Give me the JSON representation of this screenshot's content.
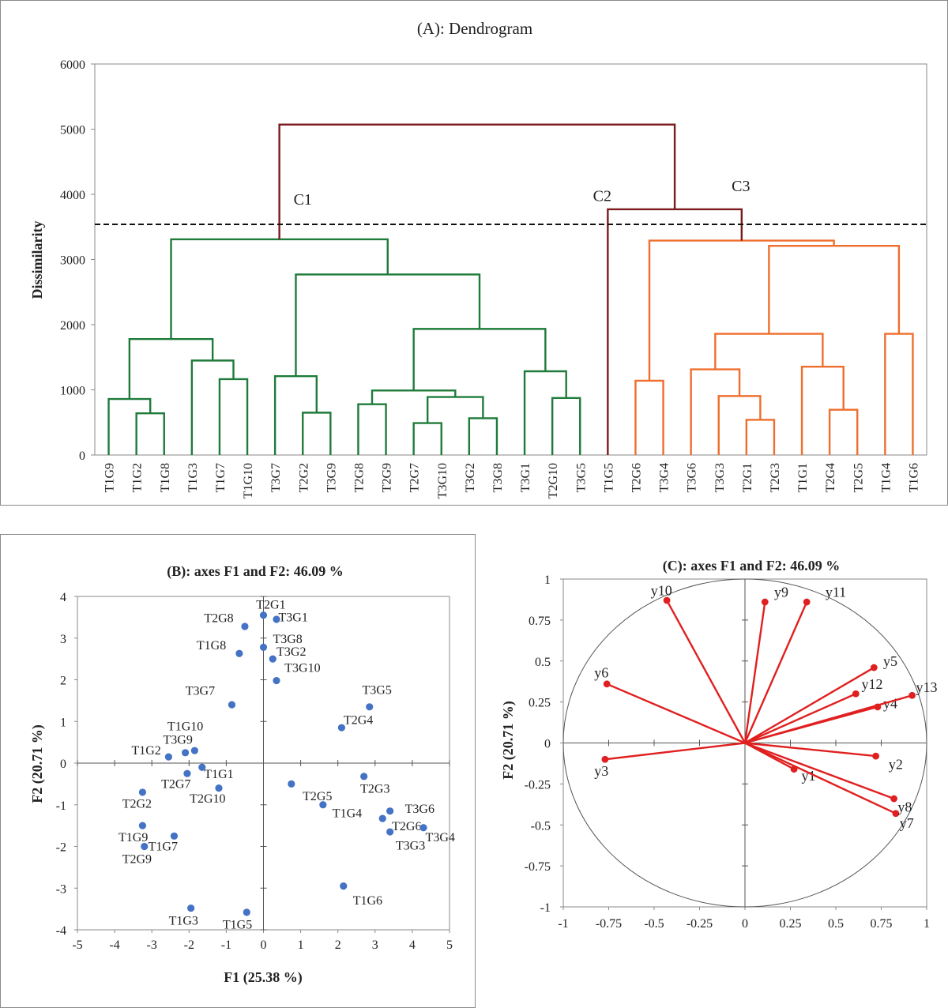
{
  "chart_data": [
    {
      "type": "dendrogram",
      "title": "(A): Dendrogram",
      "ylabel": "Dissimilarity",
      "ylim": [
        0,
        6000
      ],
      "yticks": [
        "0",
        "1000",
        "2000",
        "3000",
        "4000",
        "5000",
        "6000"
      ],
      "threshold": 3540,
      "leaves": [
        "T1G9",
        "T1G2",
        "T1G8",
        "T1G3",
        "T1G7",
        "T1G10",
        "T3G7",
        "T2G2",
        "T3G9",
        "T2G8",
        "T2G9",
        "T2G7",
        "T3G10",
        "T3G2",
        "T3G8",
        "T3G1",
        "T2G10",
        "T3G5",
        "T1G5",
        "T2G6",
        "T3G4",
        "T3G6",
        "T3G3",
        "T2G1",
        "T2G3",
        "T1G1",
        "T2G4",
        "T2G5",
        "T1G4",
        "T1G6"
      ],
      "cluster_labels": [
        {
          "text": "C1",
          "x": 7.5,
          "y": 3840
        },
        {
          "text": "C2",
          "x": 18.3,
          "y": 3900
        },
        {
          "text": "C3",
          "x": 23.3,
          "y": 4050
        }
      ],
      "colors": {
        "C1": "#1e7b3a",
        "C2": "#7b1a1e",
        "C3": "#ef6e2d",
        "root": "#7b1a1e"
      },
      "merges": [
        {
          "id": "m1",
          "l": "T1G2",
          "r": "T1G8",
          "h": 640,
          "c": "C1"
        },
        {
          "id": "m2",
          "l": "T1G9",
          "r": "m1",
          "h": 860,
          "c": "C1"
        },
        {
          "id": "m3",
          "l": "T1G7",
          "r": "T1G10",
          "h": 1165,
          "c": "C1"
        },
        {
          "id": "m4",
          "l": "T1G3",
          "r": "m3",
          "h": 1450,
          "c": "C1"
        },
        {
          "id": "m5",
          "l": "m2",
          "r": "m4",
          "h": 1780,
          "c": "C1"
        },
        {
          "id": "m6",
          "l": "T2G2",
          "r": "T3G9",
          "h": 650,
          "c": "C1"
        },
        {
          "id": "m7",
          "l": "T3G7",
          "r": "m6",
          "h": 1210,
          "c": "C1"
        },
        {
          "id": "m8",
          "l": "T2G8",
          "r": "T2G9",
          "h": 780,
          "c": "C1"
        },
        {
          "id": "m9",
          "l": "T2G7",
          "r": "T3G10",
          "h": 490,
          "c": "C1"
        },
        {
          "id": "m10",
          "l": "T3G2",
          "r": "T3G8",
          "h": 565,
          "c": "C1"
        },
        {
          "id": "m11",
          "l": "m9",
          "r": "m10",
          "h": 890,
          "c": "C1"
        },
        {
          "id": "m12",
          "l": "m8",
          "r": "m11",
          "h": 990,
          "c": "C1"
        },
        {
          "id": "m13",
          "l": "T2G10",
          "r": "T3G5",
          "h": 875,
          "c": "C1"
        },
        {
          "id": "m14",
          "l": "T3G1",
          "r": "m13",
          "h": 1285,
          "c": "C1"
        },
        {
          "id": "m15",
          "l": "m12",
          "r": "m14",
          "h": 1935,
          "c": "C1"
        },
        {
          "id": "m16",
          "l": "m7",
          "r": "m15",
          "h": 2770,
          "c": "C1"
        },
        {
          "id": "m17",
          "l": "m5",
          "r": "m16",
          "h": 3310,
          "c": "C1"
        },
        {
          "id": "m18",
          "l": "T2G6",
          "r": "T3G4",
          "h": 1140,
          "c": "C3"
        },
        {
          "id": "m19",
          "l": "T2G1",
          "r": "T2G3",
          "h": 540,
          "c": "C3"
        },
        {
          "id": "m20",
          "l": "T3G3",
          "r": "m19",
          "h": 905,
          "c": "C3"
        },
        {
          "id": "m21",
          "l": "T3G6",
          "r": "m20",
          "h": 1315,
          "c": "C3"
        },
        {
          "id": "m22",
          "l": "T2G4",
          "r": "T2G5",
          "h": 695,
          "c": "C3"
        },
        {
          "id": "m23",
          "l": "T1G1",
          "r": "m22",
          "h": 1355,
          "c": "C3"
        },
        {
          "id": "m24",
          "l": "m21",
          "r": "m23",
          "h": 1860,
          "c": "C3"
        },
        {
          "id": "m25",
          "l": "T1G4",
          "r": "T1G6",
          "h": 1860,
          "c": "C3"
        },
        {
          "id": "m26",
          "l": "m24",
          "r": "m25",
          "h": 3210,
          "c": "C3"
        },
        {
          "id": "m27",
          "l": "m18",
          "r": "m26",
          "h": 3290,
          "c": "C3"
        },
        {
          "id": "m28",
          "l": "T1G5",
          "r": "m27",
          "h": 3770,
          "c": "C2"
        },
        {
          "id": "m29",
          "l": "m17",
          "r": "m28",
          "h": 5070,
          "c": "root"
        }
      ]
    },
    {
      "type": "scatter",
      "title": "(B): axes F1 and F2: 46.09 %",
      "xlabel": "F1 (25.38 %)",
      "ylabel": "F2 (20.71 %)",
      "xlim": [
        -5,
        5
      ],
      "ylim": [
        -4,
        4
      ],
      "xticks": [
        "-5",
        "-4",
        "-3",
        "-2",
        "-1",
        "0",
        "1",
        "2",
        "3",
        "4",
        "5"
      ],
      "yticks": [
        "-4",
        "-3",
        "-2",
        "-1",
        "0",
        "1",
        "2",
        "3",
        "4"
      ],
      "color": "#4472c4",
      "points": [
        {
          "label": "T2G1",
          "x": 0.0,
          "y": 3.55,
          "lx": 0.2,
          "ly": 3.8
        },
        {
          "label": "T3G1",
          "x": 0.35,
          "y": 3.45,
          "lx": 0.8,
          "ly": 3.5
        },
        {
          "label": "T2G8",
          "x": -0.5,
          "y": 3.28,
          "lx": -1.2,
          "ly": 3.48
        },
        {
          "label": "T3G8",
          "x": 0.0,
          "y": 2.78,
          "lx": 0.65,
          "ly": 2.98
        },
        {
          "label": "T1G8",
          "x": -0.65,
          "y": 2.63,
          "lx": -1.4,
          "ly": 2.82
        },
        {
          "label": "T3G2",
          "x": 0.25,
          "y": 2.5,
          "lx": 0.75,
          "ly": 2.67
        },
        {
          "label": "T3G10",
          "x": 0.35,
          "y": 1.98,
          "lx": 1.05,
          "ly": 2.28
        },
        {
          "label": "T3G7",
          "x": -0.85,
          "y": 1.4,
          "lx": -1.7,
          "ly": 1.73
        },
        {
          "label": "T3G5",
          "x": 2.85,
          "y": 1.35,
          "lx": 3.05,
          "ly": 1.75
        },
        {
          "label": "T2G4",
          "x": 2.1,
          "y": 0.85,
          "lx": 2.55,
          "ly": 1.03
        },
        {
          "label": "T1G10",
          "x": -1.85,
          "y": 0.3,
          "lx": -2.1,
          "ly": 0.88
        },
        {
          "label": "T3G9",
          "x": -2.1,
          "y": 0.25,
          "lx": -2.3,
          "ly": 0.56
        },
        {
          "label": "T1G2",
          "x": -2.55,
          "y": 0.15,
          "lx": -3.15,
          "ly": 0.3
        },
        {
          "label": "T1G1",
          "x": -1.65,
          "y": -0.1,
          "lx": -1.2,
          "ly": -0.27
        },
        {
          "label": "T2G7",
          "x": -2.05,
          "y": -0.25,
          "lx": -2.35,
          "ly": -0.5
        },
        {
          "label": "T2G10",
          "x": -1.2,
          "y": -0.6,
          "lx": -1.5,
          "ly": -0.85
        },
        {
          "label": "T2G2",
          "x": -3.25,
          "y": -0.7,
          "lx": -3.4,
          "ly": -0.98
        },
        {
          "label": "T2G3",
          "x": 2.7,
          "y": -0.32,
          "lx": 3.0,
          "ly": -0.62
        },
        {
          "label": "T2G5",
          "x": 0.75,
          "y": -0.5,
          "lx": 1.45,
          "ly": -0.8
        },
        {
          "label": "T1G4",
          "x": 1.6,
          "y": -1.0,
          "lx": 2.25,
          "ly": -1.2
        },
        {
          "label": "T3G6",
          "x": 3.4,
          "y": -1.15,
          "lx": 4.2,
          "ly": -1.1
        },
        {
          "label": "T2G6",
          "x": 3.2,
          "y": -1.33,
          "lx": 3.85,
          "ly": -1.52
        },
        {
          "label": "T3G4",
          "x": 4.3,
          "y": -1.55,
          "lx": 4.75,
          "ly": -1.78
        },
        {
          "label": "T3G3",
          "x": 3.4,
          "y": -1.65,
          "lx": 3.95,
          "ly": -1.98
        },
        {
          "label": "T1G9",
          "x": -3.25,
          "y": -1.5,
          "lx": -3.5,
          "ly": -1.78
        },
        {
          "label": "T1G7",
          "x": -2.4,
          "y": -1.75,
          "lx": -2.7,
          "ly": -2.0
        },
        {
          "label": "T2G9",
          "x": -3.2,
          "y": -2.0,
          "lx": -3.4,
          "ly": -2.3
        },
        {
          "label": "T1G6",
          "x": 2.15,
          "y": -2.95,
          "lx": 2.8,
          "ly": -3.3
        },
        {
          "label": "T1G3",
          "x": -1.95,
          "y": -3.48,
          "lx": -2.15,
          "ly": -3.78
        },
        {
          "label": "T1G5",
          "x": -0.45,
          "y": -3.58,
          "lx": -0.7,
          "ly": -3.88
        }
      ]
    },
    {
      "type": "correlation_circle",
      "title": "(C): axes F1 and F2: 46.09 %",
      "xlabel": "",
      "ylabel": "F2 (20.71 %)",
      "xlim": [
        -1,
        1
      ],
      "ylim": [
        -1,
        1
      ],
      "xticks": [
        "-1",
        "-0.75",
        "-0.5",
        "-0.25",
        "0",
        "0.25",
        "0.5",
        "0.75",
        "1"
      ],
      "yticks": [
        "-1",
        "-0.75",
        "-0.5",
        "-0.25",
        "0",
        "0.25",
        "0.5",
        "0.75",
        "1"
      ],
      "color": "#e02020",
      "vectors": [
        {
          "label": "y1",
          "x": 0.27,
          "y": -0.16,
          "lx": 0.35,
          "ly": -0.2
        },
        {
          "label": "y2",
          "x": 0.72,
          "y": -0.08,
          "lx": 0.83,
          "ly": -0.13
        },
        {
          "label": "y3",
          "x": -0.77,
          "y": -0.1,
          "lx": -0.79,
          "ly": -0.17
        },
        {
          "label": "y4",
          "x": 0.73,
          "y": 0.22,
          "lx": 0.8,
          "ly": 0.24
        },
        {
          "label": "y5",
          "x": 0.71,
          "y": 0.46,
          "lx": 0.8,
          "ly": 0.5
        },
        {
          "label": "y6",
          "x": -0.76,
          "y": 0.36,
          "lx": -0.79,
          "ly": 0.43
        },
        {
          "label": "y7",
          "x": 0.83,
          "y": -0.43,
          "lx": 0.89,
          "ly": -0.49
        },
        {
          "label": "y8",
          "x": 0.82,
          "y": -0.34,
          "lx": 0.88,
          "ly": -0.39
        },
        {
          "label": "y9",
          "x": 0.11,
          "y": 0.86,
          "lx": 0.2,
          "ly": 0.92
        },
        {
          "label": "y10",
          "x": -0.43,
          "y": 0.87,
          "lx": -0.46,
          "ly": 0.93
        },
        {
          "label": "y11",
          "x": 0.34,
          "y": 0.86,
          "lx": 0.5,
          "ly": 0.92
        },
        {
          "label": "y12",
          "x": 0.61,
          "y": 0.3,
          "lx": 0.7,
          "ly": 0.36
        },
        {
          "label": "y13",
          "x": 0.92,
          "y": 0.29,
          "lx": 1.0,
          "ly": 0.34
        }
      ]
    }
  ]
}
